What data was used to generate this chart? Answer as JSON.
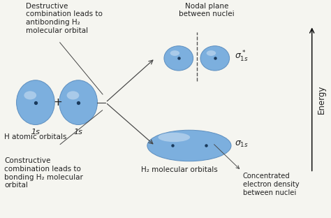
{
  "bg_color": "#f5f5f0",
  "orbital_color_face": "#6fa8dc",
  "orbital_color_edge": "#5588bb",
  "nucleus_color": "#1a3a5c",
  "text_color": "#222222",
  "arrow_color": "#444444",
  "dashed_line_color": "#555555",
  "energy_arrow_color": "#111111",
  "texts": {
    "destructive": "Destructive\ncombination leads to\nantibonding H₂\nmolecular orbital",
    "constructive": "Constructive\ncombination leads to\nbonding H₂ molecular\norbital",
    "h_atomic": "H atomic orbitals",
    "nodal": "Nodal plane\nbetween nuclei",
    "h2_mol": "H₂ molecular orbitals",
    "concentrated": "Concentrated\nelectron density\nbetween nuclei",
    "label_1s_1": "1s",
    "label_1s_2": "1s",
    "energy": "Energy",
    "plus": "+"
  },
  "figsize": [
    4.74,
    3.12
  ],
  "dpi": 100
}
